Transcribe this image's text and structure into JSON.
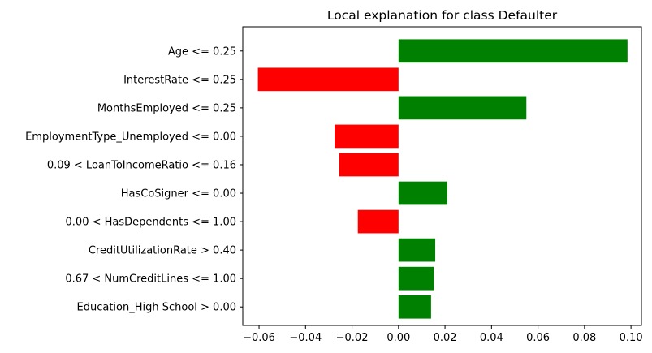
{
  "chart_data": {
    "type": "bar",
    "orientation": "horizontal",
    "title": "Local explanation for class Defaulter",
    "xlabel": "",
    "ylabel": "",
    "categories": [
      "Age <= 0.25",
      "InterestRate <= 0.25",
      "MonthsEmployed <= 0.25",
      "EmploymentType_Unemployed <= 0.00",
      "0.09 < LoanToIncomeRatio <= 0.16",
      "HasCoSigner <= 0.00",
      "0.00 < HasDependents <= 1.00",
      "CreditUtilizationRate > 0.40",
      "0.67 < NumCreditLines <= 1.00",
      "Education_High School > 0.00"
    ],
    "values": [
      0.0985,
      -0.0605,
      0.055,
      -0.0275,
      -0.0255,
      0.021,
      -0.0175,
      0.0158,
      0.0152,
      0.014
    ],
    "xlim": [
      -0.067,
      0.1045
    ],
    "xticks": [
      -0.06,
      -0.04,
      -0.02,
      0.0,
      0.02,
      0.04,
      0.06,
      0.08,
      0.1
    ],
    "xtick_labels": [
      "−0.06",
      "−0.04",
      "−0.02",
      "0.00",
      "0.02",
      "0.04",
      "0.06",
      "0.08",
      "0.10"
    ],
    "grid": false,
    "colors": {
      "positive": "#008000",
      "negative": "#ff0000",
      "axis": "#000000"
    }
  }
}
